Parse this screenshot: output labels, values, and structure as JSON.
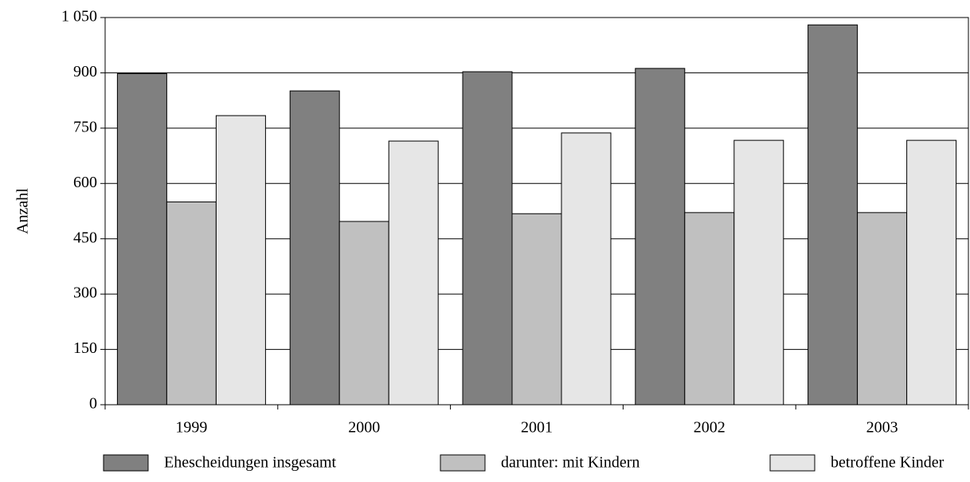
{
  "chart_data": {
    "type": "bar",
    "y_label": "Anzahl",
    "categories": [
      "1999",
      "2000",
      "2001",
      "2002",
      "2003"
    ],
    "series": [
      {
        "name": "Ehescheidungen insgesamt",
        "color": "#808080",
        "values": [
          898,
          851,
          903,
          912,
          1030
        ]
      },
      {
        "name": "darunter: mit Kindern",
        "color": "#c0c0c0",
        "values": [
          550,
          497,
          518,
          521,
          521
        ]
      },
      {
        "name": "betroffene Kinder",
        "color": "#e6e6e6",
        "values": [
          784,
          715,
          737,
          717,
          717
        ]
      }
    ],
    "ylim": [
      0,
      1050
    ],
    "yticks": [
      0,
      150,
      300,
      450,
      600,
      750,
      900,
      {
        "value": 1050,
        "label": "1 050"
      }
    ],
    "grid": true
  }
}
